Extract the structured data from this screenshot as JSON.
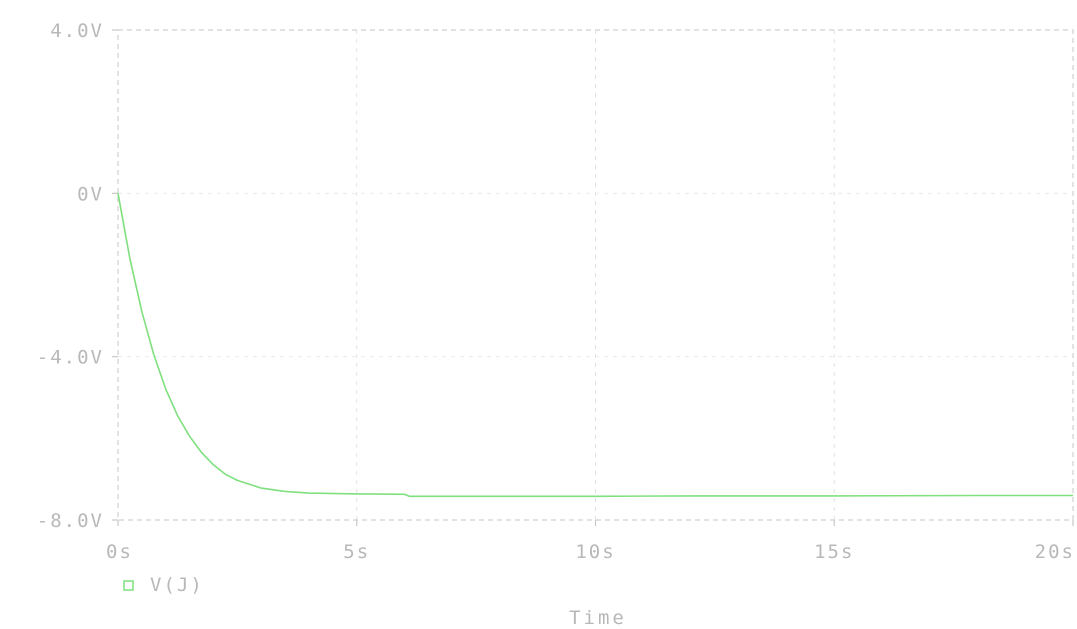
{
  "chart_data": {
    "type": "line",
    "xlabel": "Time",
    "ylabel": "",
    "xlim": [
      0,
      20
    ],
    "ylim": [
      -8,
      4
    ],
    "x_ticks": [
      {
        "value": 0,
        "label": "0s"
      },
      {
        "value": 5,
        "label": "5s"
      },
      {
        "value": 10,
        "label": "10s"
      },
      {
        "value": 15,
        "label": "15s"
      },
      {
        "value": 20,
        "label": "20s"
      }
    ],
    "y_ticks": [
      {
        "value": 4,
        "label": "4.0V"
      },
      {
        "value": 0,
        "label": "0V"
      },
      {
        "value": -4,
        "label": "-4.0V"
      },
      {
        "value": -8,
        "label": "-8.0V"
      }
    ],
    "grid": true,
    "legend_position": "bottom-left",
    "series": [
      {
        "name": "V(J)",
        "color": "#7fe07f",
        "legend_marker": "square",
        "x": [
          0,
          0.25,
          0.5,
          0.75,
          1.0,
          1.25,
          1.5,
          1.75,
          2.0,
          2.25,
          2.5,
          3.0,
          3.5,
          4.0,
          5.0,
          6.0,
          6.1,
          8.0,
          10.0,
          12.0,
          15.0,
          18.0,
          20.0
        ],
        "values": [
          0,
          -1.6,
          -2.9,
          -3.95,
          -4.8,
          -5.45,
          -5.95,
          -6.35,
          -6.65,
          -6.88,
          -7.03,
          -7.22,
          -7.3,
          -7.34,
          -7.36,
          -7.37,
          -7.42,
          -7.42,
          -7.42,
          -7.41,
          -7.41,
          -7.4,
          -7.4
        ]
      }
    ]
  }
}
